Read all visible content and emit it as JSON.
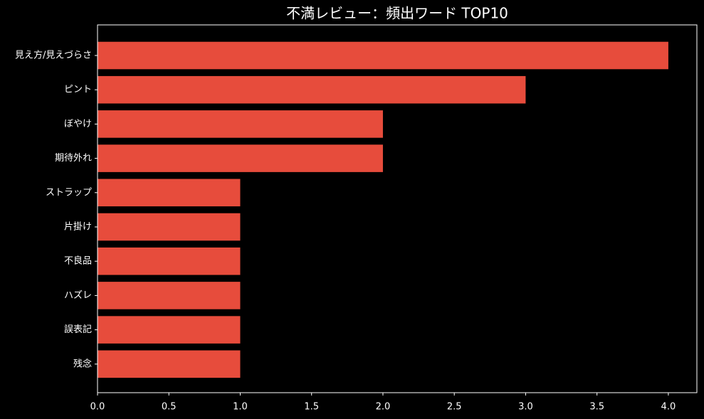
{
  "chart_data": {
    "type": "barh",
    "title": "不満レビュー：頻出ワード TOP10",
    "categories": [
      "見え方/見えづらさ",
      "ピント",
      "ぼやけ",
      "期待外れ",
      "ストラップ",
      "片掛け",
      "不良品",
      "ハズレ",
      "誤表記",
      "残念"
    ],
    "values": [
      4,
      3,
      2,
      2,
      1,
      1,
      1,
      1,
      1,
      1
    ],
    "color": "#e74c3c",
    "xlim": [
      0,
      4.2
    ],
    "xticks": [
      {
        "value": 0,
        "label": "0.0"
      },
      {
        "value": 0.5,
        "label": "0.5"
      },
      {
        "value": 1,
        "label": "1.0"
      },
      {
        "value": 1.5,
        "label": "1.5"
      },
      {
        "value": 2,
        "label": "2.0"
      },
      {
        "value": 2.5,
        "label": "2.5"
      },
      {
        "value": 3,
        "label": "3.0"
      },
      {
        "value": 3.5,
        "label": "3.5"
      },
      {
        "value": 4,
        "label": "4.0"
      }
    ]
  }
}
